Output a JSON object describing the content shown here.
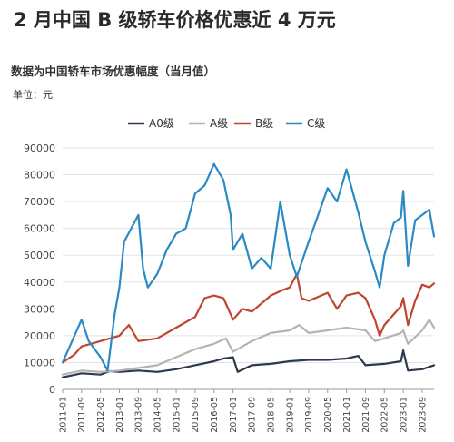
{
  "title": "2 月中国 B 级轿车价格优惠近 4 万元",
  "subtitle": "数据为中国轿车市场优惠幅度（当月值）",
  "unit": "单位：元",
  "chart_data": {
    "type": "line",
    "ylim": [
      0,
      90000
    ],
    "yticks": [
      0,
      10000,
      20000,
      30000,
      40000,
      50000,
      60000,
      70000,
      80000,
      90000
    ],
    "ytick_labels": [
      "0",
      "10000",
      "20000",
      "30000",
      "40000",
      "50000",
      "60000",
      "70000",
      "80000",
      "90000"
    ],
    "x_labels": [
      "2011-01",
      "2011-09",
      "2012-05",
      "2013-01",
      "2013-09",
      "2014-05",
      "2015-01",
      "2015-09",
      "2016-05",
      "2017-01",
      "2017-09",
      "2018-05",
      "2019-01",
      "2019-09",
      "2020-05",
      "2021-01",
      "2021-09",
      "2022-05",
      "2023-01",
      "2023-09"
    ],
    "grid": "horizontal",
    "legend_position": "top",
    "series": [
      {
        "name": "A0级",
        "color": "#2d3a4e",
        "points": [
          [
            "2011-01",
            4500
          ],
          [
            "2011-09",
            6000
          ],
          [
            "2012-05",
            5500
          ],
          [
            "2012-09",
            6800
          ],
          [
            "2013-01",
            6500
          ],
          [
            "2013-09",
            7000
          ],
          [
            "2014-05",
            6500
          ],
          [
            "2015-01",
            7500
          ],
          [
            "2015-09",
            9000
          ],
          [
            "2016-05",
            10500
          ],
          [
            "2016-09",
            11500
          ],
          [
            "2017-01",
            12000
          ],
          [
            "2017-03",
            6500
          ],
          [
            "2017-09",
            9000
          ],
          [
            "2018-05",
            9500
          ],
          [
            "2019-01",
            10500
          ],
          [
            "2019-09",
            11000
          ],
          [
            "2020-05",
            11000
          ],
          [
            "2021-01",
            11500
          ],
          [
            "2021-06",
            12500
          ],
          [
            "2021-09",
            9000
          ],
          [
            "2022-05",
            9500
          ],
          [
            "2022-12",
            10500
          ],
          [
            "2023-01",
            14500
          ],
          [
            "2023-03",
            7000
          ],
          [
            "2023-09",
            7500
          ],
          [
            "2024-02",
            9000
          ]
        ]
      },
      {
        "name": "A级",
        "color": "#b4b4b4",
        "points": [
          [
            "2011-01",
            5500
          ],
          [
            "2011-09",
            7000
          ],
          [
            "2012-05",
            6500
          ],
          [
            "2013-01",
            7000
          ],
          [
            "2013-09",
            8000
          ],
          [
            "2014-05",
            9000
          ],
          [
            "2015-01",
            12000
          ],
          [
            "2015-09",
            15000
          ],
          [
            "2016-05",
            17000
          ],
          [
            "2016-10",
            19000
          ],
          [
            "2017-01",
            14000
          ],
          [
            "2017-09",
            18000
          ],
          [
            "2018-05",
            21000
          ],
          [
            "2019-01",
            22000
          ],
          [
            "2019-05",
            24000
          ],
          [
            "2019-09",
            21000
          ],
          [
            "2020-05",
            22000
          ],
          [
            "2021-01",
            23000
          ],
          [
            "2021-09",
            22000
          ],
          [
            "2022-01",
            18000
          ],
          [
            "2022-05",
            19000
          ],
          [
            "2022-12",
            21000
          ],
          [
            "2023-01",
            22000
          ],
          [
            "2023-03",
            17000
          ],
          [
            "2023-09",
            22000
          ],
          [
            "2023-12",
            26000
          ],
          [
            "2024-02",
            23000
          ]
        ]
      },
      {
        "name": "B级",
        "color": "#c0452e",
        "points": [
          [
            "2011-01",
            10000
          ],
          [
            "2011-06",
            13000
          ],
          [
            "2011-09",
            16000
          ],
          [
            "2012-01",
            17000
          ],
          [
            "2012-05",
            18000
          ],
          [
            "2013-01",
            20000
          ],
          [
            "2013-05",
            24000
          ],
          [
            "2013-09",
            18000
          ],
          [
            "2014-05",
            19000
          ],
          [
            "2015-01",
            23000
          ],
          [
            "2015-09",
            27000
          ],
          [
            "2016-01",
            34000
          ],
          [
            "2016-05",
            35000
          ],
          [
            "2016-09",
            34000
          ],
          [
            "2017-01",
            26000
          ],
          [
            "2017-05",
            30000
          ],
          [
            "2017-09",
            29000
          ],
          [
            "2018-05",
            35000
          ],
          [
            "2018-10",
            37000
          ],
          [
            "2019-01",
            38000
          ],
          [
            "2019-04",
            43000
          ],
          [
            "2019-06",
            34000
          ],
          [
            "2019-09",
            33000
          ],
          [
            "2020-05",
            36000
          ],
          [
            "2020-09",
            30000
          ],
          [
            "2021-01",
            35000
          ],
          [
            "2021-06",
            36000
          ],
          [
            "2021-09",
            34000
          ],
          [
            "2022-01",
            26000
          ],
          [
            "2022-03",
            20000
          ],
          [
            "2022-05",
            24000
          ],
          [
            "2022-12",
            31000
          ],
          [
            "2023-01",
            34000
          ],
          [
            "2023-03",
            24000
          ],
          [
            "2023-06",
            33000
          ],
          [
            "2023-09",
            39000
          ],
          [
            "2023-12",
            38000
          ],
          [
            "2024-02",
            39500
          ]
        ]
      },
      {
        "name": "C级",
        "color": "#2b8ac4",
        "points": [
          [
            "2011-01",
            10000
          ],
          [
            "2011-04",
            16000
          ],
          [
            "2011-09",
            26000
          ],
          [
            "2011-12",
            18000
          ],
          [
            "2012-05",
            12000
          ],
          [
            "2012-08",
            7000
          ],
          [
            "2012-11",
            28000
          ],
          [
            "2013-01",
            38000
          ],
          [
            "2013-03",
            55000
          ],
          [
            "2013-09",
            65000
          ],
          [
            "2013-11",
            45000
          ],
          [
            "2014-01",
            38000
          ],
          [
            "2014-05",
            43000
          ],
          [
            "2014-09",
            52000
          ],
          [
            "2015-01",
            58000
          ],
          [
            "2015-05",
            60000
          ],
          [
            "2015-09",
            73000
          ],
          [
            "2016-01",
            76000
          ],
          [
            "2016-05",
            84000
          ],
          [
            "2016-09",
            78000
          ],
          [
            "2016-12",
            65000
          ],
          [
            "2017-01",
            52000
          ],
          [
            "2017-05",
            58000
          ],
          [
            "2017-09",
            45000
          ],
          [
            "2018-01",
            49000
          ],
          [
            "2018-05",
            45000
          ],
          [
            "2018-09",
            70000
          ],
          [
            "2019-01",
            50000
          ],
          [
            "2019-04",
            42000
          ],
          [
            "2019-09",
            55000
          ],
          [
            "2020-01",
            65000
          ],
          [
            "2020-05",
            75000
          ],
          [
            "2020-09",
            70000
          ],
          [
            "2021-01",
            82000
          ],
          [
            "2021-06",
            66000
          ],
          [
            "2021-09",
            55000
          ],
          [
            "2022-01",
            44000
          ],
          [
            "2022-03",
            38000
          ],
          [
            "2022-05",
            50000
          ],
          [
            "2022-09",
            62000
          ],
          [
            "2022-12",
            64000
          ],
          [
            "2023-01",
            74000
          ],
          [
            "2023-03",
            46000
          ],
          [
            "2023-06",
            63000
          ],
          [
            "2023-09",
            65000
          ],
          [
            "2023-12",
            67000
          ],
          [
            "2024-02",
            57000
          ]
        ]
      }
    ]
  }
}
